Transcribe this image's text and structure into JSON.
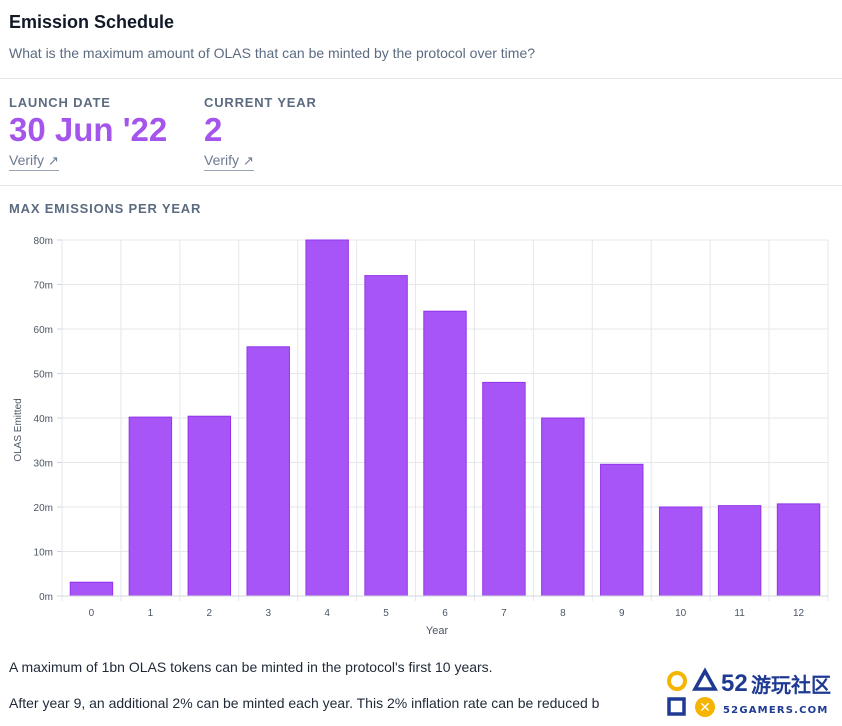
{
  "header": {
    "title": "Emission Schedule",
    "subtitle": "What is the maximum amount of OLAS that can be minted by the protocol over time?"
  },
  "stats": [
    {
      "label": "LAUNCH DATE",
      "value": "30 Jun '22",
      "link": "Verify"
    },
    {
      "label": "CURRENT YEAR",
      "value": "2",
      "link": "Verify"
    }
  ],
  "section_label": "MAX EMISSIONS PER YEAR",
  "colors": {
    "accent": "#a555ec",
    "bar": "#a855f7"
  },
  "chart_data": {
    "type": "bar",
    "title": "",
    "xlabel": "Year",
    "ylabel": "OLAS Emitted",
    "categories": [
      "0",
      "1",
      "2",
      "3",
      "4",
      "5",
      "6",
      "7",
      "8",
      "9",
      "10",
      "11",
      "12"
    ],
    "values": [
      3.1,
      40.2,
      40.4,
      56,
      80,
      72,
      64,
      48,
      40,
      29.6,
      20,
      20.3,
      20.7
    ],
    "ylim": [
      0,
      80
    ],
    "yticks": [
      "0m",
      "10m",
      "20m",
      "30m",
      "40m",
      "50m",
      "60m",
      "70m",
      "80m"
    ],
    "grid": true,
    "legend": "none"
  },
  "paragraphs": [
    "A maximum of 1bn OLAS tokens can be minted in the protocol's first 10 years.",
    "After year 9, an additional 2% can be minted each year. This 2% inflation rate can be reduced b"
  ],
  "watermark": {
    "number": "52",
    "cn": "游玩社区",
    "site": "52GAMERS.COM"
  }
}
